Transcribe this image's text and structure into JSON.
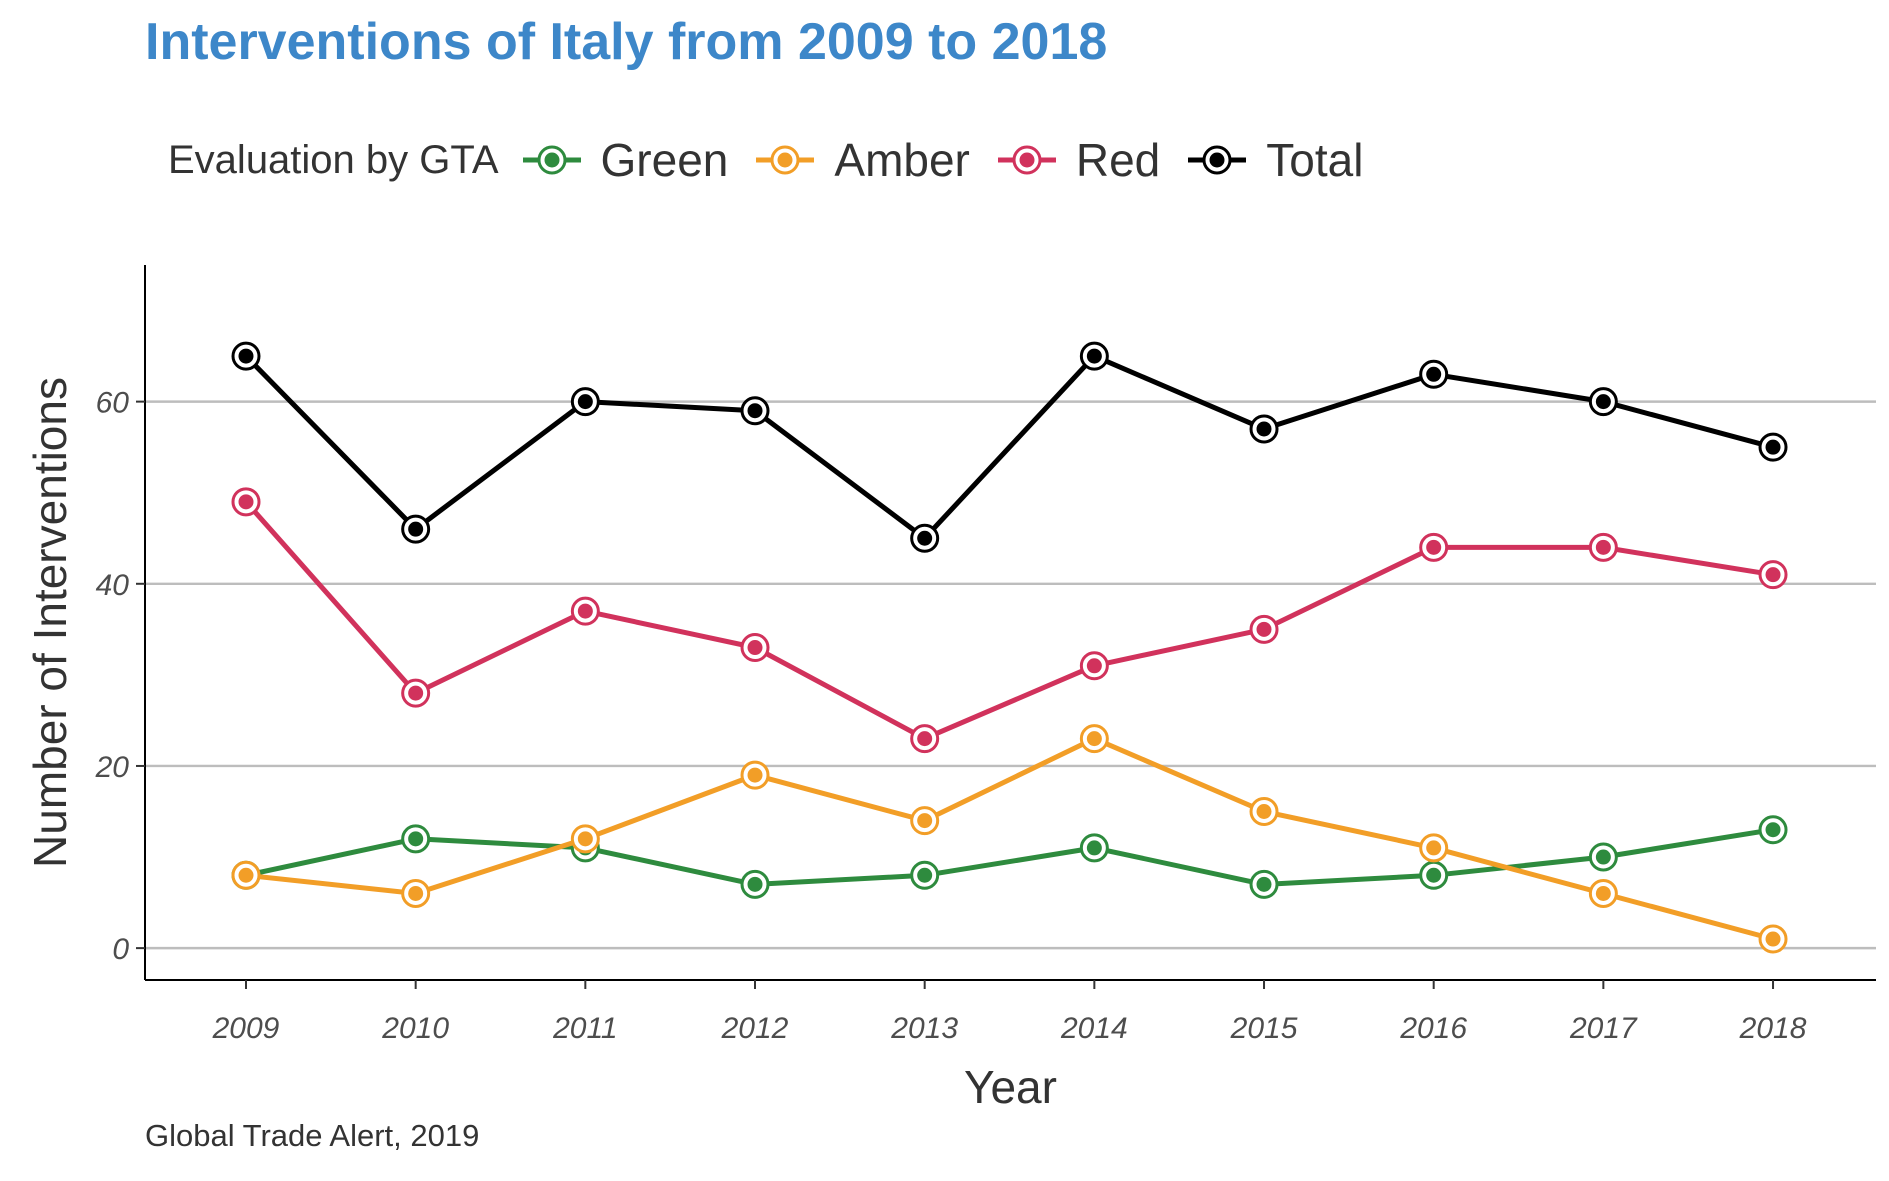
{
  "chart_data": {
    "type": "line",
    "title": "Interventions of Italy from 2009 to 2018",
    "xlabel": "Year",
    "ylabel": "Number of Interventions",
    "caption": "Global Trade Alert, 2019",
    "legend_title": "Evaluation by GTA",
    "legend_position": "top",
    "grid": "horizontal major",
    "x": [
      2009,
      2010,
      2011,
      2012,
      2013,
      2014,
      2015,
      2016,
      2017,
      2018
    ],
    "x_tick_labels": [
      "2009",
      "2010",
      "2011",
      "2012",
      "2013",
      "2014",
      "2015",
      "2016",
      "2017",
      "2018"
    ],
    "y_ticks": [
      0,
      20,
      40,
      60
    ],
    "y_tick_labels": [
      "0",
      "20",
      "40",
      "60"
    ],
    "ylim": [
      -3.5,
      75
    ],
    "series": [
      {
        "name": "Green",
        "color": "#2e8b3e",
        "values": [
          8,
          12,
          11,
          7,
          8,
          11,
          7,
          8,
          10,
          13
        ]
      },
      {
        "name": "Amber",
        "color": "#f29e27",
        "values": [
          8,
          6,
          12,
          19,
          14,
          23,
          15,
          11,
          6,
          1
        ]
      },
      {
        "name": "Red",
        "color": "#d1325c",
        "values": [
          49,
          28,
          37,
          33,
          23,
          31,
          35,
          44,
          44,
          41
        ]
      },
      {
        "name": "Total",
        "color": "#000000",
        "values": [
          65,
          46,
          60,
          59,
          45,
          65,
          57,
          63,
          60,
          55
        ]
      }
    ]
  }
}
